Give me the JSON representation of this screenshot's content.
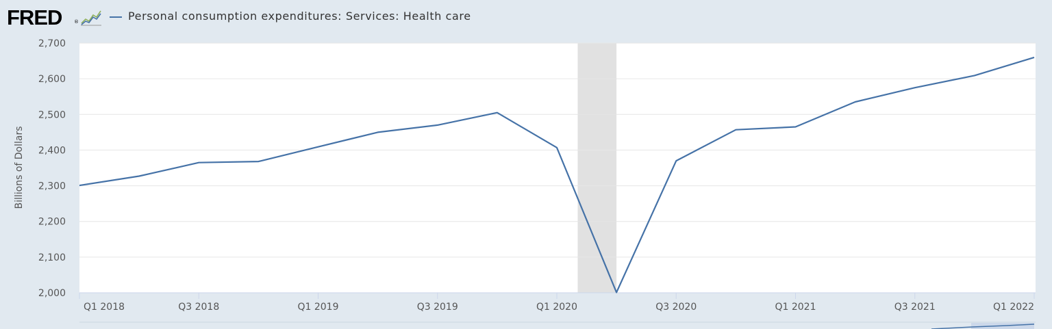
{
  "header": {
    "logo_text": "FRED",
    "logo_reg": "®",
    "series_title": "Personal consumption expenditures: Services: Health care"
  },
  "colors": {
    "line": "#4572a7",
    "recession": "#e1e1e1",
    "plot_bg": "#ffffff",
    "page_bg": "#e1e9f0",
    "grid": "#e6e6e6"
  },
  "chart_data": {
    "type": "line",
    "title": "Personal consumption expenditures: Services: Health care",
    "ylabel": "Billions of Dollars",
    "xlabel": "",
    "ylim": [
      2000,
      2700
    ],
    "yticks": [
      2000,
      2100,
      2200,
      2300,
      2400,
      2500,
      2600,
      2700
    ],
    "ytick_labels": [
      "2,000",
      "2,100",
      "2,200",
      "2,300",
      "2,400",
      "2,500",
      "2,600",
      "2,700"
    ],
    "xtick_labels": [
      "Q1 2018",
      "Q3 2018",
      "Q1 2019",
      "Q3 2019",
      "Q1 2020",
      "Q3 2020",
      "Q1 2021",
      "Q3 2021",
      "Q1 2022"
    ],
    "xtick_index": [
      0,
      2,
      4,
      6,
      8,
      10,
      12,
      14,
      16
    ],
    "recession": {
      "from_index": 8.35,
      "to_index": 9
    },
    "series": [
      {
        "name": "Personal consumption expenditures: Services: Health care",
        "x": [
          "2018Q1",
          "2018Q2",
          "2018Q3",
          "2018Q4",
          "2019Q1",
          "2019Q2",
          "2019Q3",
          "2019Q4",
          "2020Q1",
          "2020Q2",
          "2020Q3",
          "2020Q4",
          "2021Q1",
          "2021Q2",
          "2021Q3",
          "2021Q4",
          "2022Q1"
        ],
        "values": [
          2301,
          2327,
          2365,
          2368,
          2409,
          2450,
          2470,
          2505,
          2407,
          2001,
          2370,
          2457,
          2465,
          2535,
          2575,
          2609,
          2660
        ],
        "start_value": 2290,
        "start_offset": -0.1
      }
    ]
  }
}
